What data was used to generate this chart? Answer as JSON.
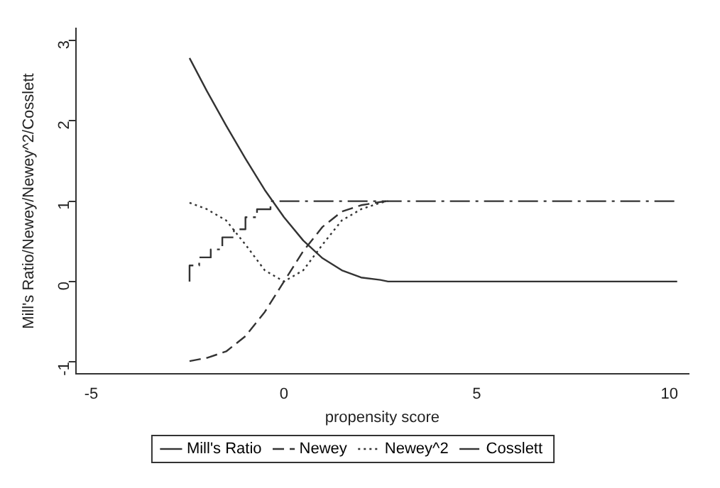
{
  "chart_data": {
    "type": "line",
    "xlabel": "propensity score",
    "ylabel": "Mill's Ratio/Newey/Newey^2/Cosslett",
    "xlim": [
      -5.4,
      10.5
    ],
    "ylim": [
      -1.15,
      3.15
    ],
    "xticks": [
      -5,
      0,
      5,
      10
    ],
    "yticks": [
      -1,
      0,
      1,
      2,
      3
    ],
    "grid": false,
    "legend": "bottom",
    "marker": "none",
    "series": [
      {
        "name": "Mill's Ratio",
        "color": "#333333",
        "line_style": "solid",
        "x": [
          -2.45,
          -2,
          -1.5,
          -1,
          -0.5,
          0,
          0.5,
          1,
          1.5,
          2,
          2.5,
          2.7,
          10.2
        ],
        "values": [
          2.78,
          2.37,
          1.94,
          1.53,
          1.14,
          0.8,
          0.51,
          0.29,
          0.14,
          0.05,
          0.02,
          0,
          0
        ]
      },
      {
        "name": "Newey",
        "color": "#333333",
        "line_style": "dashed",
        "x": [
          -2.45,
          -2,
          -1.5,
          -1,
          -0.5,
          0,
          0.5,
          1,
          1.5,
          2,
          2.5,
          2.7
        ],
        "values": [
          -0.99,
          -0.95,
          -0.87,
          -0.68,
          -0.38,
          0,
          0.38,
          0.68,
          0.87,
          0.95,
          0.99,
          1
        ]
      },
      {
        "name": "Newey^2",
        "color": "#333333",
        "line_style": "dotted",
        "x": [
          -2.45,
          -2,
          -1.5,
          -1,
          -0.5,
          0,
          0.5,
          1,
          1.5,
          2,
          2.5,
          2.7
        ],
        "values": [
          0.98,
          0.9,
          0.76,
          0.46,
          0.14,
          0,
          0.14,
          0.46,
          0.76,
          0.9,
          0.98,
          1
        ]
      },
      {
        "name": "Cosslett",
        "type": "step",
        "color": "#333333",
        "line_style": "dashdot",
        "x": [
          -2.45,
          -2.2,
          -1.9,
          -1.6,
          -1.3,
          -1,
          -0.7,
          -0.35,
          -0.05,
          10.2
        ],
        "values": [
          0,
          0.2,
          0.3,
          0.4,
          0.55,
          0.65,
          0.8,
          0.9,
          1,
          1
        ]
      }
    ]
  }
}
